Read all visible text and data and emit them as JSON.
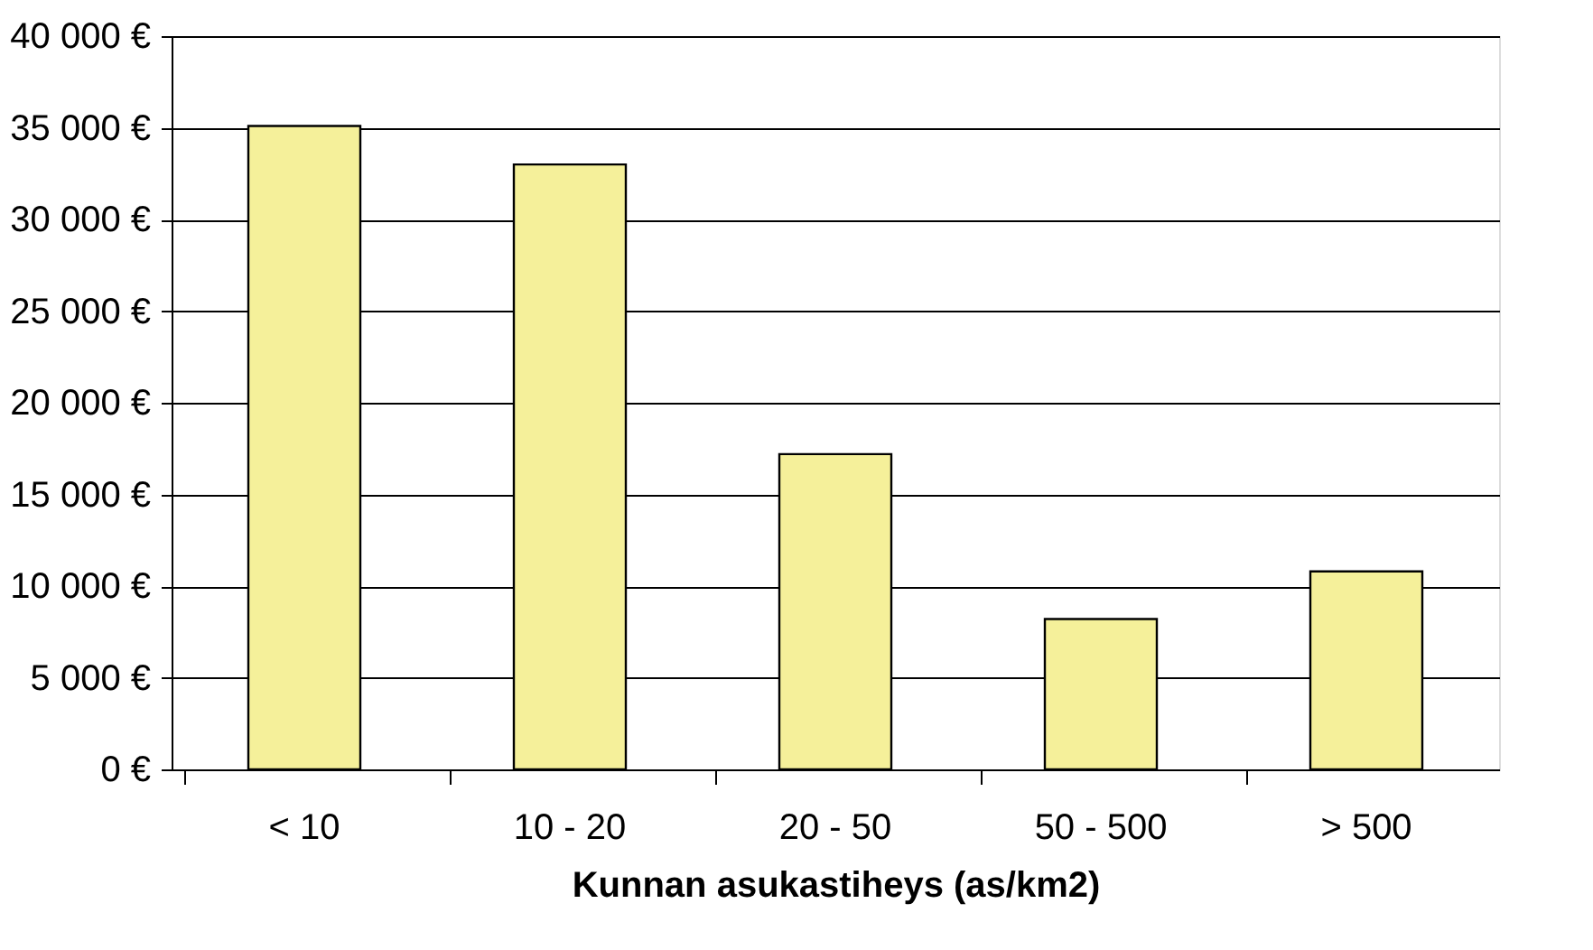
{
  "chart_data": {
    "type": "bar",
    "xlabel": "Kunnan asukastiheys (as/km2)",
    "categories": [
      "< 10",
      "10 - 20",
      "20 - 50",
      "50 - 500",
      "> 500"
    ],
    "values": [
      35100,
      33000,
      17200,
      8200,
      10800
    ],
    "color": "#f5f09a",
    "ylim": [
      0,
      40000
    ],
    "yticks": [
      {
        "value": 0,
        "label": "0 €"
      },
      {
        "value": 5000,
        "label": "5 000 €"
      },
      {
        "value": 10000,
        "label": "10 000 €"
      },
      {
        "value": 15000,
        "label": "15 000 €"
      },
      {
        "value": 20000,
        "label": "20 000 €"
      },
      {
        "value": 25000,
        "label": "25 000 €"
      },
      {
        "value": 30000,
        "label": "30 000 €"
      },
      {
        "value": 35000,
        "label": "35 000 €"
      },
      {
        "value": 40000,
        "label": "40 000 €"
      }
    ],
    "grid": "y"
  }
}
